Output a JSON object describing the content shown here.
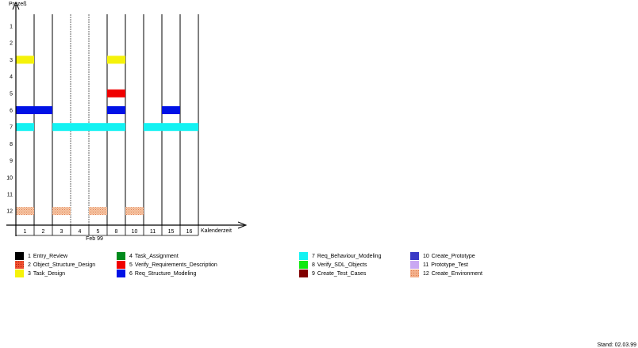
{
  "chart_data": {
    "type": "gantt",
    "ylabel": "Prozeß",
    "xlabel": "Kalenderzeit",
    "month_label": "Feb 99",
    "y_ticks": [
      "1",
      "2",
      "3",
      "4",
      "5",
      "6",
      "7",
      "8",
      "9",
      "10",
      "11",
      "12"
    ],
    "x_ticks": [
      "1",
      "2",
      "3",
      "4",
      "5",
      "8",
      "10",
      "11",
      "15",
      "16"
    ],
    "bars": [
      {
        "process": 3,
        "from": 0,
        "to": 1,
        "color": "#f5f20a",
        "pattern": false
      },
      {
        "process": 3,
        "from": 5,
        "to": 6,
        "color": "#f5f20a",
        "pattern": false
      },
      {
        "process": 5,
        "from": 5,
        "to": 6,
        "color": "#f00000",
        "pattern": false
      },
      {
        "process": 6,
        "from": 0,
        "to": 2,
        "color": "#0012e6",
        "pattern": false
      },
      {
        "process": 6,
        "from": 5,
        "to": 6,
        "color": "#0012e6",
        "pattern": false
      },
      {
        "process": 6,
        "from": 8,
        "to": 9,
        "color": "#0012e6",
        "pattern": false
      },
      {
        "process": 7,
        "from": 0,
        "to": 1,
        "color": "#13f2f2",
        "pattern": false
      },
      {
        "process": 7,
        "from": 2,
        "to": 6,
        "color": "#13f2f2",
        "pattern": false
      },
      {
        "process": 7,
        "from": 7,
        "to": 10,
        "color": "#13f2f2",
        "pattern": false
      },
      {
        "process": 12,
        "from": 0,
        "to": 1,
        "color": "#f3b08c",
        "pattern": true
      },
      {
        "process": 12,
        "from": 2,
        "to": 3,
        "color": "#f3b08c",
        "pattern": true
      },
      {
        "process": 12,
        "from": 4,
        "to": 5,
        "color": "#f3b08c",
        "pattern": true
      },
      {
        "process": 12,
        "from": 6,
        "to": 7,
        "color": "#f3b08c",
        "pattern": true
      }
    ],
    "legend": [
      {
        "num": "1",
        "label": "Entry_Review",
        "color": "#000000",
        "pattern": false
      },
      {
        "num": "2",
        "label": "Object_Structure_Design",
        "color": "#ef5030",
        "pattern": true
      },
      {
        "num": "3",
        "label": "Task_Design",
        "color": "#f5f20a",
        "pattern": false
      },
      {
        "num": "4",
        "label": "Task_Assignment",
        "color": "#008a1c",
        "pattern": false
      },
      {
        "num": "5",
        "label": "Verify_Requirements_Description",
        "color": "#f00000",
        "pattern": false
      },
      {
        "num": "6",
        "label": "Req_Structure_Modeling",
        "color": "#0012e6",
        "pattern": false
      },
      {
        "num": "7",
        "label": "Req_Behaviour_Modeling",
        "color": "#13f2f2",
        "pattern": false
      },
      {
        "num": "8",
        "label": "Verify_SDL_Objects",
        "color": "#10e810",
        "pattern": false
      },
      {
        "num": "9",
        "label": "Create_Test_Cases",
        "color": "#800000",
        "pattern": false
      },
      {
        "num": "10",
        "label": "Create_Prototype",
        "color": "#3a3ac6",
        "pattern": false
      },
      {
        "num": "11",
        "label": "Prototype_Test",
        "color": "#c9a8f2",
        "pattern": false
      },
      {
        "num": "12",
        "label": "Create_Environment",
        "color": "#f3b08c",
        "pattern": true
      }
    ]
  },
  "footer": {
    "stand": "Stand: 02.03.99"
  }
}
